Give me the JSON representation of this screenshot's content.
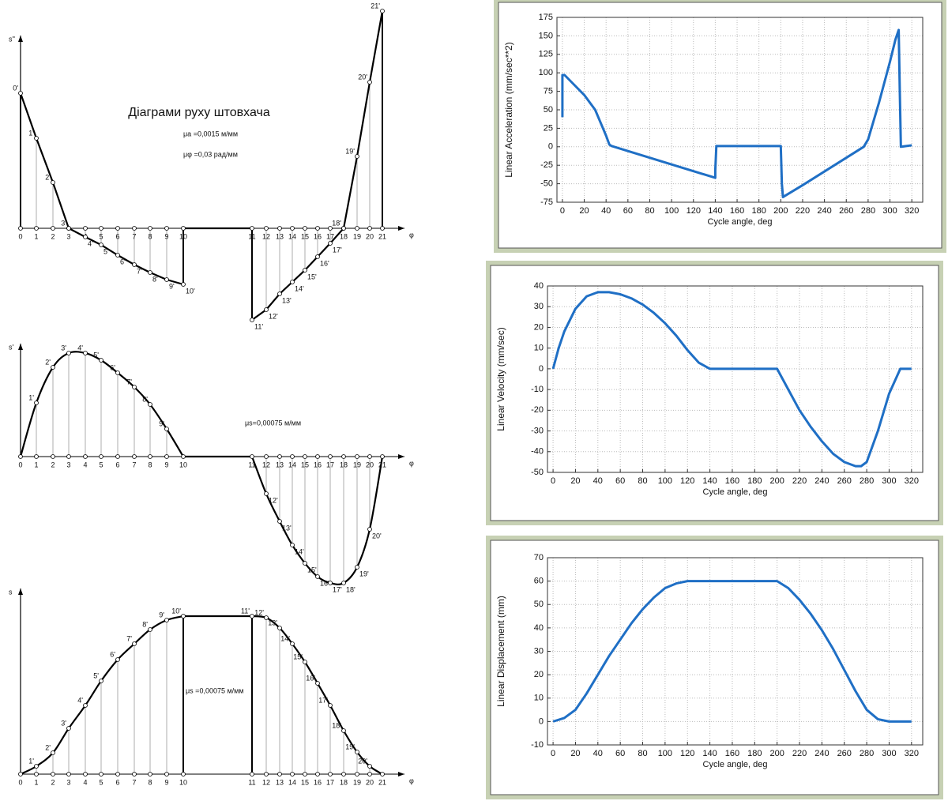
{
  "chart_data": [
    {
      "type": "profile",
      "title": "Діаграми руху штовхача",
      "ylabel": "s''",
      "xlabel": "φ",
      "annotations": [
        "μa =0,0015 м/мм",
        "μφ =0,03 рад/мм"
      ],
      "smooth": false,
      "categories": [
        "0",
        "1",
        "2",
        "3",
        "4",
        "5",
        "6",
        "7",
        "8",
        "9",
        "10",
        "11",
        "12",
        "13",
        "14",
        "15",
        "16",
        "17",
        "18",
        "19",
        "20",
        "21"
      ],
      "values": [
        171,
        114,
        58,
        0,
        -11,
        -21,
        -34,
        -46,
        -56,
        -65,
        -71,
        -116,
        -103,
        -83,
        -68,
        -53,
        -36,
        -19,
        0,
        91,
        185,
        275
      ],
      "point_labels": [
        "0'",
        "1'",
        "2'",
        "3'",
        "4'",
        "5'",
        "6'",
        "7'",
        "8'",
        "9'",
        "10'",
        "11'",
        "12'",
        "13'",
        "14'",
        "15'",
        "16'",
        "17'",
        "18'",
        "19'",
        "20'",
        "21'"
      ]
    },
    {
      "type": "profile",
      "ylabel": "s'",
      "xlabel": "φ",
      "annotations": [
        "μs=0,00075 м/мм"
      ],
      "smooth": true,
      "categories": [
        "0",
        "1",
        "2",
        "3",
        "4",
        "5",
        "6",
        "7",
        "8",
        "9",
        "10",
        "11",
        "12",
        "13",
        "14",
        "15",
        "16",
        "17",
        "18",
        "19",
        "20",
        "21"
      ],
      "values": [
        0,
        68,
        113,
        131,
        131,
        122,
        106,
        88,
        66,
        35,
        0,
        0,
        -47,
        -82,
        -112,
        -135,
        -152,
        -160,
        -160,
        -140,
        -92,
        0
      ],
      "point_labels": [
        null,
        "1'",
        "2'",
        "3'",
        "4'",
        "5'",
        "6'",
        "7'",
        "8'",
        "9'",
        null,
        null,
        "12'",
        "13'",
        "14'",
        "15'",
        "16'",
        "17'",
        "18'",
        "19'",
        "20'",
        null
      ]
    },
    {
      "type": "profile",
      "ylabel": "s",
      "xlabel": "φ",
      "annotations": [
        "μs =0,00075 м/мм"
      ],
      "smooth": true,
      "categories": [
        "0",
        "1",
        "2",
        "3",
        "4",
        "5",
        "6",
        "7",
        "8",
        "9",
        "10",
        "11",
        "12",
        "13",
        "14",
        "15",
        "16",
        "17",
        "18",
        "19",
        "20",
        "21"
      ],
      "values": [
        0,
        10,
        27,
        58,
        87,
        118,
        145,
        165,
        183,
        195,
        200,
        200,
        198,
        185,
        165,
        142,
        115,
        87,
        55,
        28,
        10,
        0
      ],
      "point_labels": [
        null,
        "1'",
        "2'",
        "3'",
        "4'",
        "5'",
        "6'",
        "7'",
        "8'",
        "9'",
        "10'",
        "11'",
        "12'",
        "13'",
        "14'",
        "15'",
        "16'",
        "17'",
        "18'",
        "19'",
        "20'",
        null
      ]
    },
    {
      "type": "line",
      "xlabel": "Cycle angle, deg",
      "ylabel": "Linear Acceleration (mm/sec**2)",
      "color": "#1f6fc5",
      "grid": true,
      "xlim": [
        -5,
        330
      ],
      "ylim": [
        -75,
        175
      ],
      "xticks": [
        0,
        20,
        40,
        60,
        80,
        100,
        120,
        140,
        160,
        180,
        200,
        220,
        240,
        260,
        280,
        300,
        320
      ],
      "yticks": [
        -75,
        -50,
        -25,
        0,
        25,
        50,
        75,
        100,
        125,
        150,
        175
      ],
      "x": [
        0,
        0,
        2,
        10,
        20,
        30,
        40,
        43,
        45,
        140,
        140,
        141,
        200,
        201,
        202,
        220,
        276,
        280,
        290,
        300,
        305,
        308,
        309,
        310,
        320
      ],
      "values": [
        40,
        97,
        97,
        85,
        70,
        50,
        15,
        3,
        1,
        -42,
        -32,
        1,
        1,
        -50,
        -68,
        -52,
        0,
        10,
        60,
        115,
        145,
        158,
        75,
        0,
        2
      ]
    },
    {
      "type": "line",
      "xlabel": "Cycle angle, deg",
      "ylabel": "Linear Velocity (mm/sec)",
      "color": "#1f6fc5",
      "grid": true,
      "xlim": [
        -5,
        330
      ],
      "ylim": [
        -50,
        40
      ],
      "xticks": [
        0,
        20,
        40,
        60,
        80,
        100,
        120,
        140,
        160,
        180,
        200,
        220,
        240,
        260,
        280,
        300,
        320
      ],
      "yticks": [
        -50,
        -40,
        -30,
        -20,
        -10,
        0,
        10,
        20,
        30,
        40
      ],
      "x": [
        0,
        5,
        10,
        20,
        30,
        40,
        50,
        60,
        70,
        80,
        90,
        100,
        110,
        120,
        130,
        140,
        200,
        210,
        220,
        230,
        240,
        250,
        260,
        270,
        275,
        280,
        290,
        300,
        310,
        320
      ],
      "values": [
        0,
        10,
        18,
        29,
        35,
        37,
        37,
        36,
        34,
        31,
        27,
        22,
        16,
        9,
        3,
        0,
        0,
        -10,
        -20,
        -28,
        -35,
        -41,
        -45,
        -47,
        -47,
        -45,
        -30,
        -12,
        0,
        0
      ]
    },
    {
      "type": "line",
      "xlabel": "Cycle angle, deg",
      "ylabel": "Linear Displacement (mm)",
      "color": "#1f6fc5",
      "grid": true,
      "xlim": [
        -5,
        330
      ],
      "ylim": [
        -10,
        70
      ],
      "xticks": [
        0,
        20,
        40,
        60,
        80,
        100,
        120,
        140,
        160,
        180,
        200,
        220,
        240,
        260,
        280,
        300,
        320
      ],
      "yticks": [
        -10,
        0,
        10,
        20,
        30,
        40,
        50,
        60,
        70
      ],
      "x": [
        0,
        10,
        20,
        30,
        40,
        50,
        60,
        70,
        80,
        90,
        100,
        110,
        120,
        130,
        140,
        200,
        210,
        220,
        230,
        240,
        250,
        260,
        270,
        280,
        290,
        300,
        310,
        320
      ],
      "values": [
        0,
        1.5,
        5,
        12,
        20,
        28,
        35,
        42,
        48,
        53,
        57,
        59,
        60,
        60,
        60,
        60,
        57,
        52,
        46,
        39,
        31,
        22,
        13,
        5,
        1,
        0,
        0,
        0
      ]
    }
  ]
}
